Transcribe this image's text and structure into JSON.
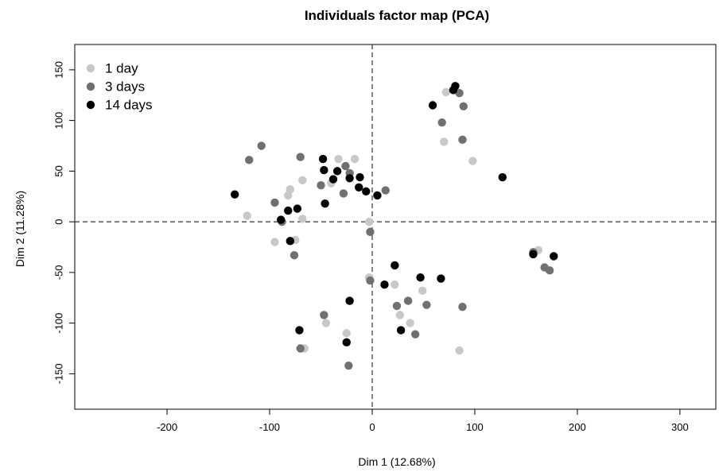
{
  "chart_data": {
    "type": "scatter",
    "title": "Individuals factor map (PCA)",
    "xlabel": "Dim 1 (12.68%)",
    "ylabel": "Dim 2 (11.28%)",
    "xlim": [
      -290,
      335
    ],
    "ylim": [
      -185,
      175
    ],
    "xticks": [
      -200,
      -100,
      0,
      100,
      200,
      300
    ],
    "yticks": [
      -150,
      -100,
      -50,
      0,
      50,
      100,
      150
    ],
    "grid": false,
    "reference_lines": {
      "x": 0,
      "y": 0,
      "style": "dashed"
    },
    "legend_position": "top-left",
    "series": [
      {
        "name": "1 day",
        "color": "#c8c8c8",
        "points": [
          [
            -122,
            6
          ],
          [
            -95,
            -20
          ],
          [
            -82,
            26
          ],
          [
            -80,
            32
          ],
          [
            -75,
            -18
          ],
          [
            -68,
            41
          ],
          [
            -68,
            3
          ],
          [
            -40,
            38
          ],
          [
            -33,
            62
          ],
          [
            -17,
            62
          ],
          [
            -3,
            0
          ],
          [
            -3,
            -55
          ],
          [
            -25,
            -110
          ],
          [
            -45,
            -100
          ],
          [
            -66,
            -125
          ],
          [
            22,
            -62
          ],
          [
            27,
            -92
          ],
          [
            37,
            -100
          ],
          [
            49,
            -68
          ],
          [
            70,
            79
          ],
          [
            72,
            128
          ],
          [
            98,
            60
          ],
          [
            85,
            -127
          ],
          [
            162,
            -28
          ]
        ]
      },
      {
        "name": "3 days",
        "color": "#707070",
        "points": [
          [
            -120,
            61
          ],
          [
            -108,
            75
          ],
          [
            -95,
            19
          ],
          [
            -88,
            0
          ],
          [
            -76,
            -33
          ],
          [
            -70,
            64
          ],
          [
            -50,
            36
          ],
          [
            -28,
            28
          ],
          [
            -26,
            55
          ],
          [
            -22,
            48
          ],
          [
            13,
            31
          ],
          [
            -2,
            -10
          ],
          [
            -2,
            -58
          ],
          [
            -47,
            -92
          ],
          [
            -70,
            -125
          ],
          [
            -23,
            -142
          ],
          [
            24,
            -83
          ],
          [
            35,
            -78
          ],
          [
            42,
            -111
          ],
          [
            53,
            -82
          ],
          [
            68,
            98
          ],
          [
            85,
            127
          ],
          [
            88,
            81
          ],
          [
            89,
            114
          ],
          [
            88,
            -84
          ],
          [
            157,
            -30
          ],
          [
            168,
            -45
          ],
          [
            173,
            -48
          ]
        ]
      },
      {
        "name": "14 days",
        "color": "#000000",
        "points": [
          [
            -134,
            27
          ],
          [
            -89,
            2
          ],
          [
            -82,
            11
          ],
          [
            -73,
            13
          ],
          [
            -80,
            -19
          ],
          [
            -48,
            62
          ],
          [
            -47,
            51
          ],
          [
            -46,
            18
          ],
          [
            -38,
            42
          ],
          [
            -34,
            50
          ],
          [
            -22,
            43
          ],
          [
            -13,
            34
          ],
          [
            -12,
            44
          ],
          [
            -6,
            30
          ],
          [
            5,
            26
          ],
          [
            -71,
            -107
          ],
          [
            -25,
            -119
          ],
          [
            -22,
            -78
          ],
          [
            12,
            -62
          ],
          [
            22,
            -43
          ],
          [
            28,
            -107
          ],
          [
            47,
            -55
          ],
          [
            67,
            -56
          ],
          [
            59,
            115
          ],
          [
            79,
            130
          ],
          [
            81,
            134
          ],
          [
            127,
            44
          ],
          [
            157,
            -32
          ],
          [
            177,
            -34
          ]
        ]
      }
    ]
  }
}
